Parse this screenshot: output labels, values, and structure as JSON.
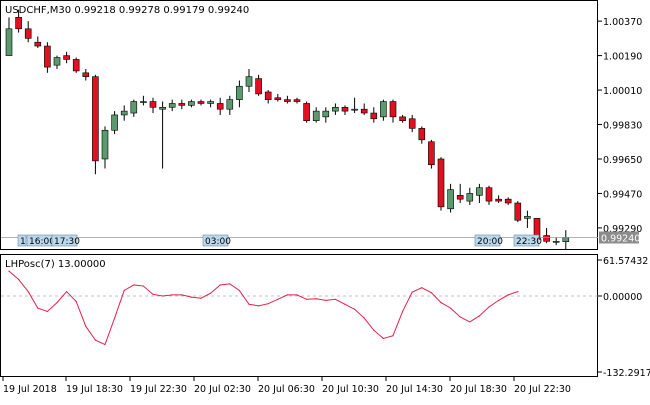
{
  "window": {
    "symbol": "USDCHF",
    "timeframe": "M30",
    "header": "USDCHF,M30  0.99218 0.99278 0.99179 0.99240"
  },
  "colors": {
    "bull_candle": "#5a9a6e",
    "bear_candle": "#e01020",
    "wick": "#000000",
    "oscillator_line": "#e0204a",
    "zero_line": "#b0b0b0",
    "axis_text": "#000000",
    "current_price_bg": "#8c8c8c",
    "current_price_text": "#ffffff",
    "marker_bg": "#bcd8ec"
  },
  "price_axis": {
    "labels": [
      "1.00370",
      "1.00190",
      "1.00010",
      "0.99830",
      "0.99650",
      "0.99470",
      "0.99290"
    ],
    "current_price": "0.99240"
  },
  "markers": {
    "left_number": "1",
    "items": [
      "16:00",
      "17:30",
      "03:00",
      "20:00",
      "22:30"
    ]
  },
  "indicator": {
    "title": "LHPosc(7) 13.00000",
    "labels": [
      "61.57432",
      "0.00000",
      "-132.29173"
    ]
  },
  "time_axis": {
    "labels": [
      "19 Jul 2018",
      "19 Jul 18:30",
      "19 Jul 22:30",
      "20 Jul 02:30",
      "20 Jul 06:30",
      "20 Jul 10:30",
      "20 Jul 14:30",
      "20 Jul 18:30",
      "20 Jul 22:30"
    ]
  },
  "chart_data": [
    {
      "type": "candlestick",
      "title": "USDCHF,M30",
      "y_range": [
        0.99185,
        1.0047
      ],
      "candles": [
        {
          "o": 1.0019,
          "h": 1.0039,
          "l": 1.0019,
          "c": 1.0033
        },
        {
          "o": 1.0039,
          "h": 1.0043,
          "l": 1.0031,
          "c": 1.0033
        },
        {
          "o": 1.0033,
          "h": 1.0037,
          "l": 1.0026,
          "c": 1.0028
        },
        {
          "o": 1.0026,
          "h": 1.0029,
          "l": 1.0023,
          "c": 1.0024
        },
        {
          "o": 1.0024,
          "h": 1.0026,
          "l": 1.001,
          "c": 1.0013
        },
        {
          "o": 1.0014,
          "h": 1.0019,
          "l": 1.0012,
          "c": 1.0018
        },
        {
          "o": 1.0019,
          "h": 1.0021,
          "l": 1.0015,
          "c": 1.0017
        },
        {
          "o": 1.0017,
          "h": 1.0018,
          "l": 1.001,
          "c": 1.0011
        },
        {
          "o": 1.001,
          "h": 1.0012,
          "l": 1.0006,
          "c": 1.0008
        },
        {
          "o": 1.0008,
          "h": 1.0009,
          "l": 0.9957,
          "c": 0.9964
        },
        {
          "o": 0.9965,
          "h": 0.9982,
          "l": 0.996,
          "c": 0.998
        },
        {
          "o": 0.998,
          "h": 0.999,
          "l": 0.9978,
          "c": 0.9988
        },
        {
          "o": 0.9988,
          "h": 0.9993,
          "l": 0.9985,
          "c": 0.999
        },
        {
          "o": 0.9989,
          "h": 0.9996,
          "l": 0.9987,
          "c": 0.9995
        },
        {
          "o": 0.9995,
          "h": 0.9998,
          "l": 0.9993,
          "c": 0.9995
        },
        {
          "o": 0.9995,
          "h": 0.9997,
          "l": 0.9989,
          "c": 0.9992
        },
        {
          "o": 0.9991,
          "h": 0.9995,
          "l": 0.996,
          "c": 0.9992
        },
        {
          "o": 0.9992,
          "h": 0.9996,
          "l": 0.999,
          "c": 0.9994
        },
        {
          "o": 0.9994,
          "h": 0.9996,
          "l": 0.9991,
          "c": 0.9993
        },
        {
          "o": 0.9993,
          "h": 0.9996,
          "l": 0.9992,
          "c": 0.9995
        },
        {
          "o": 0.9995,
          "h": 0.9996,
          "l": 0.9993,
          "c": 0.9994
        },
        {
          "o": 0.9994,
          "h": 0.9996,
          "l": 0.9992,
          "c": 0.9995
        },
        {
          "o": 0.9994,
          "h": 0.9997,
          "l": 0.9988,
          "c": 0.9991
        },
        {
          "o": 0.9991,
          "h": 0.9998,
          "l": 0.9988,
          "c": 0.9996
        },
        {
          "o": 0.9996,
          "h": 1.0006,
          "l": 0.9992,
          "c": 1.0003
        },
        {
          "o": 1.0003,
          "h": 1.0012,
          "l": 1.0,
          "c": 1.0008
        },
        {
          "o": 1.0007,
          "h": 1.0009,
          "l": 0.9998,
          "c": 0.9999
        },
        {
          "o": 1.0,
          "h": 1.0001,
          "l": 0.9994,
          "c": 0.9996
        },
        {
          "o": 0.9997,
          "h": 0.9999,
          "l": 0.9995,
          "c": 0.9996
        },
        {
          "o": 0.9996,
          "h": 0.9998,
          "l": 0.9994,
          "c": 0.9995
        },
        {
          "o": 0.9996,
          "h": 0.9997,
          "l": 0.9994,
          "c": 0.9995
        },
        {
          "o": 0.9994,
          "h": 0.9995,
          "l": 0.9984,
          "c": 0.9985
        },
        {
          "o": 0.9985,
          "h": 0.9992,
          "l": 0.9984,
          "c": 0.999
        },
        {
          "o": 0.9987,
          "h": 0.9992,
          "l": 0.9984,
          "c": 0.999
        },
        {
          "o": 0.999,
          "h": 0.9994,
          "l": 0.9988,
          "c": 0.9992
        },
        {
          "o": 0.9992,
          "h": 0.9993,
          "l": 0.9988,
          "c": 0.999
        },
        {
          "o": 0.9991,
          "h": 0.9997,
          "l": 0.9989,
          "c": 0.9991
        },
        {
          "o": 0.9991,
          "h": 0.9994,
          "l": 0.9988,
          "c": 0.9989
        },
        {
          "o": 0.9989,
          "h": 0.9992,
          "l": 0.9984,
          "c": 0.9986
        },
        {
          "o": 0.9987,
          "h": 0.9996,
          "l": 0.9985,
          "c": 0.9995
        },
        {
          "o": 0.9995,
          "h": 0.9996,
          "l": 0.9984,
          "c": 0.9987
        },
        {
          "o": 0.9987,
          "h": 0.9988,
          "l": 0.9984,
          "c": 0.9985
        },
        {
          "o": 0.9986,
          "h": 0.9988,
          "l": 0.9979,
          "c": 0.9981
        },
        {
          "o": 0.9981,
          "h": 0.9982,
          "l": 0.9973,
          "c": 0.9975
        },
        {
          "o": 0.9974,
          "h": 0.9975,
          "l": 0.996,
          "c": 0.9962
        },
        {
          "o": 0.9965,
          "h": 0.9966,
          "l": 0.9938,
          "c": 0.994
        },
        {
          "o": 0.9939,
          "h": 0.9952,
          "l": 0.9937,
          "c": 0.9949
        },
        {
          "o": 0.9946,
          "h": 0.9952,
          "l": 0.9942,
          "c": 0.9944
        },
        {
          "o": 0.9943,
          "h": 0.995,
          "l": 0.9941,
          "c": 0.9947
        },
        {
          "o": 0.9946,
          "h": 0.9952,
          "l": 0.9942,
          "c": 0.995
        },
        {
          "o": 0.995,
          "h": 0.9951,
          "l": 0.9941,
          "c": 0.9943
        },
        {
          "o": 0.9944,
          "h": 0.9946,
          "l": 0.9942,
          "c": 0.9943
        },
        {
          "o": 0.9944,
          "h": 0.9945,
          "l": 0.9941,
          "c": 0.9942
        },
        {
          "o": 0.9942,
          "h": 0.9943,
          "l": 0.9932,
          "c": 0.9933
        },
        {
          "o": 0.9934,
          "h": 0.9938,
          "l": 0.9929,
          "c": 0.9935
        },
        {
          "o": 0.9934,
          "h": 0.9934,
          "l": 0.9922,
          "c": 0.9923
        },
        {
          "o": 0.9925,
          "h": 0.9929,
          "l": 0.9921,
          "c": 0.9922
        },
        {
          "o": 0.9922,
          "h": 0.9924,
          "l": 0.992,
          "c": 0.9922
        },
        {
          "o": 0.99218,
          "h": 0.99278,
          "l": 0.99179,
          "c": 0.9924
        }
      ]
    },
    {
      "type": "line",
      "title": "LHPosc(7) 13.00000",
      "y_range": [
        -132.29173,
        61.57432
      ],
      "values": [
        45,
        30,
        8,
        -22,
        -28,
        -12,
        8,
        -10,
        -55,
        -80,
        -88,
        -40,
        10,
        20,
        18,
        3,
        0,
        2,
        2,
        -2,
        -4,
        5,
        20,
        22,
        10,
        -15,
        -18,
        -14,
        -6,
        2,
        2,
        -6,
        -5,
        -8,
        -6,
        -15,
        -24,
        -40,
        -62,
        -77,
        -72,
        -28,
        7,
        15,
        6,
        -12,
        -22,
        -38,
        -47,
        -36,
        -20,
        -8,
        2,
        8
      ]
    }
  ]
}
